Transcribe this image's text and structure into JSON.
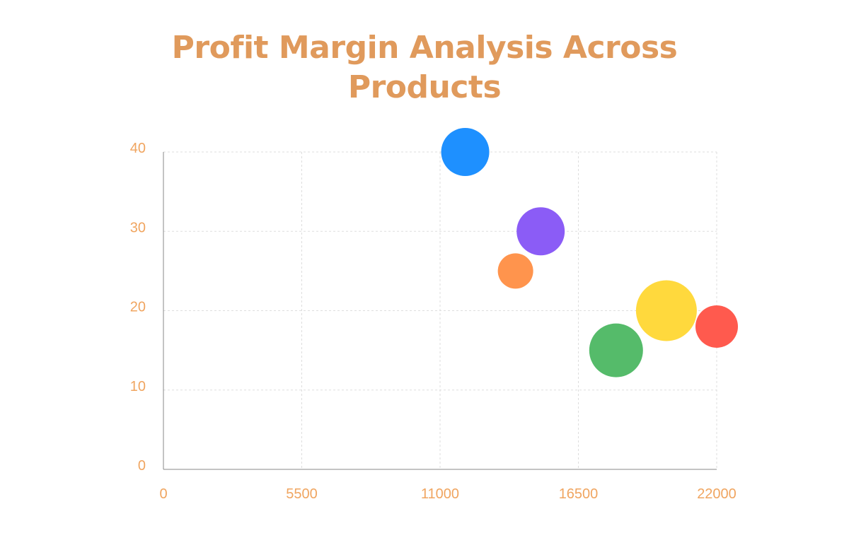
{
  "chart_data": {
    "type": "scatter",
    "title": "Profit Margin Analysis Across Products",
    "xlabel": "",
    "ylabel": "",
    "xlim": [
      0,
      22000
    ],
    "ylim": [
      0,
      40
    ],
    "x_ticks": [
      "0",
      "5500",
      "11000",
      "16500",
      "22000"
    ],
    "y_ticks": [
      "0",
      "10",
      "20",
      "30",
      "40"
    ],
    "grid": true,
    "legend": "none",
    "points": [
      {
        "x": 12000,
        "y": 40,
        "size": 34,
        "color": "#1e90ff"
      },
      {
        "x": 15000,
        "y": 30,
        "size": 34,
        "color": "#8b5cf6"
      },
      {
        "x": 14000,
        "y": 25,
        "size": 25,
        "color": "#ff944d"
      },
      {
        "x": 20000,
        "y": 20,
        "size": 43,
        "color": "#ffd93d"
      },
      {
        "x": 22000,
        "y": 18,
        "size": 30,
        "color": "#ff5a4e"
      },
      {
        "x": 18000,
        "y": 15,
        "size": 38,
        "color": "#55bb6a"
      }
    ]
  },
  "colors": {
    "title": "#e09a5c",
    "tick": "#f0a560",
    "grid": "#dddddd",
    "axis": "#888888"
  }
}
